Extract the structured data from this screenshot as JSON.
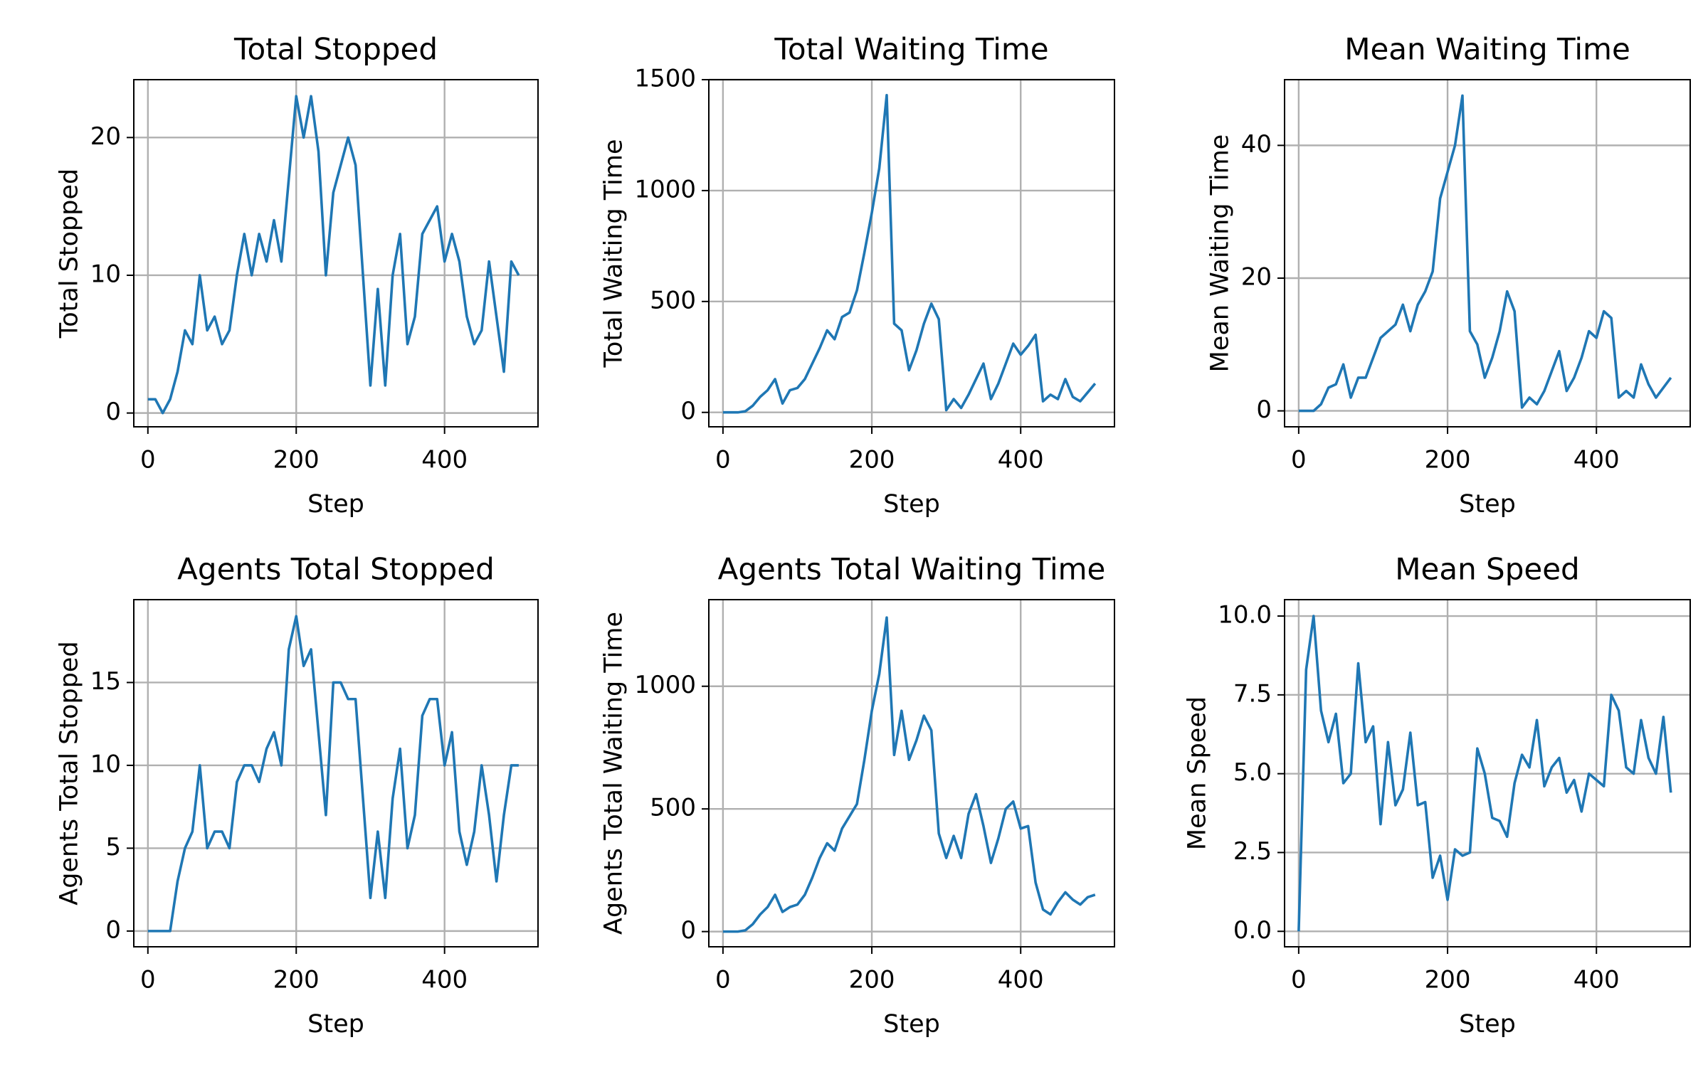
{
  "chart_data": [
    {
      "type": "line",
      "title": "Total Stopped",
      "xlabel": "Step",
      "ylabel": "Total Stopped",
      "x": [
        0,
        10,
        20,
        30,
        40,
        50,
        60,
        70,
        80,
        90,
        100,
        110,
        120,
        130,
        140,
        150,
        160,
        170,
        180,
        190,
        200,
        210,
        220,
        230,
        240,
        250,
        260,
        270,
        280,
        290,
        300,
        310,
        320,
        330,
        340,
        350,
        360,
        370,
        380,
        390,
        400,
        410,
        420,
        430,
        440,
        450,
        460,
        470,
        480,
        490,
        500
      ],
      "series": [
        {
          "color": "#1f77b4",
          "values": [
            1,
            1,
            0,
            1,
            3,
            6,
            5,
            10,
            6,
            7,
            5,
            6,
            10,
            13,
            10,
            13,
            11,
            14,
            11,
            17,
            23,
            20,
            23,
            19,
            10,
            16,
            18,
            20,
            18,
            10,
            2,
            9,
            2,
            10,
            13,
            5,
            7,
            13,
            14,
            15,
            11,
            13,
            11,
            7,
            5,
            6,
            11,
            7,
            3,
            11,
            10
          ]
        }
      ],
      "xlim": [
        -19,
        526
      ],
      "ylim": [
        -1,
        24.2
      ],
      "xticks": [
        0,
        200,
        400
      ],
      "yticks": [
        0,
        10,
        20
      ],
      "grid": true
    },
    {
      "type": "line",
      "title": "Total Waiting Time",
      "xlabel": "Step",
      "ylabel": "Total Waiting Time",
      "x": [
        0,
        10,
        20,
        30,
        40,
        50,
        60,
        70,
        80,
        90,
        100,
        110,
        120,
        130,
        140,
        150,
        160,
        170,
        180,
        190,
        200,
        210,
        220,
        230,
        240,
        250,
        260,
        270,
        280,
        290,
        300,
        310,
        320,
        330,
        340,
        350,
        360,
        370,
        380,
        390,
        400,
        410,
        420,
        430,
        440,
        450,
        460,
        470,
        480,
        490,
        500
      ],
      "series": [
        {
          "color": "#1f77b4",
          "values": [
            0,
            0,
            0,
            5,
            30,
            70,
            100,
            150,
            40,
            100,
            110,
            150,
            220,
            290,
            370,
            330,
            430,
            450,
            550,
            720,
            900,
            1100,
            1430,
            400,
            370,
            190,
            280,
            400,
            490,
            420,
            10,
            60,
            20,
            80,
            150,
            220,
            60,
            130,
            220,
            310,
            260,
            300,
            350,
            50,
            80,
            60,
            150,
            70,
            50,
            90,
            130
          ]
        }
      ],
      "xlim": [
        -19,
        526
      ],
      "ylim": [
        -65,
        1500
      ],
      "xticks": [
        0,
        200,
        400
      ],
      "yticks": [
        0,
        500,
        1000,
        1500
      ],
      "grid": true
    },
    {
      "type": "line",
      "title": "Mean Waiting Time",
      "xlabel": "Step",
      "ylabel": "Mean Waiting Time",
      "x": [
        0,
        10,
        20,
        30,
        40,
        50,
        60,
        70,
        80,
        90,
        100,
        110,
        120,
        130,
        140,
        150,
        160,
        170,
        180,
        190,
        200,
        210,
        220,
        230,
        240,
        250,
        260,
        270,
        280,
        290,
        300,
        310,
        320,
        330,
        340,
        350,
        360,
        370,
        380,
        390,
        400,
        410,
        420,
        430,
        440,
        450,
        460,
        470,
        480,
        490,
        500
      ],
      "series": [
        {
          "color": "#1f77b4",
          "values": [
            0,
            0,
            0,
            1,
            3.5,
            4,
            7,
            2,
            5,
            5,
            8,
            11,
            12,
            13,
            16,
            12,
            16,
            18,
            21,
            32,
            36,
            40,
            47.5,
            12,
            10,
            5,
            8,
            12,
            18,
            15,
            0.5,
            2,
            1,
            3,
            6,
            9,
            3,
            5,
            8,
            12,
            11,
            15,
            14,
            2,
            3,
            2,
            7,
            4,
            2,
            3.5,
            5
          ]
        }
      ],
      "xlim": [
        -19,
        526
      ],
      "ylim": [
        -2.4,
        49.9
      ],
      "xticks": [
        0,
        200,
        400
      ],
      "yticks": [
        0,
        20,
        40
      ],
      "grid": true
    },
    {
      "type": "line",
      "title": "Agents Total Stopped",
      "xlabel": "Step",
      "ylabel": "Agents Total Stopped",
      "x": [
        0,
        10,
        20,
        30,
        40,
        50,
        60,
        70,
        80,
        90,
        100,
        110,
        120,
        130,
        140,
        150,
        160,
        170,
        180,
        190,
        200,
        210,
        220,
        230,
        240,
        250,
        260,
        270,
        280,
        290,
        300,
        310,
        320,
        330,
        340,
        350,
        360,
        370,
        380,
        390,
        400,
        410,
        420,
        430,
        440,
        450,
        460,
        470,
        480,
        490,
        500
      ],
      "series": [
        {
          "color": "#1f77b4",
          "values": [
            0,
            0,
            0,
            0,
            3,
            5,
            6,
            10,
            5,
            6,
            6,
            5,
            9,
            10,
            10,
            9,
            11,
            12,
            10,
            17,
            19,
            16,
            17,
            12,
            7,
            15,
            15,
            14,
            14,
            8,
            2,
            6,
            2,
            8,
            11,
            5,
            7,
            13,
            14,
            14,
            10,
            12,
            6,
            4,
            6,
            10,
            7,
            3,
            7,
            10,
            10
          ]
        }
      ],
      "xlim": [
        -19,
        526
      ],
      "ylim": [
        -0.95,
        20
      ],
      "xticks": [
        0,
        200,
        400
      ],
      "yticks": [
        0,
        5,
        10,
        15
      ],
      "grid": true
    },
    {
      "type": "line",
      "title": "Agents Total Waiting Time",
      "xlabel": "Step",
      "ylabel": "Agents Total Waiting Time",
      "x": [
        0,
        10,
        20,
        30,
        40,
        50,
        60,
        70,
        80,
        90,
        100,
        110,
        120,
        130,
        140,
        150,
        160,
        170,
        180,
        190,
        200,
        210,
        220,
        230,
        240,
        250,
        260,
        270,
        280,
        290,
        300,
        310,
        320,
        330,
        340,
        350,
        360,
        370,
        380,
        390,
        400,
        410,
        420,
        430,
        440,
        450,
        460,
        470,
        480,
        490,
        500
      ],
      "series": [
        {
          "color": "#1f77b4",
          "values": [
            0,
            0,
            0,
            5,
            30,
            70,
            100,
            150,
            80,
            100,
            110,
            150,
            220,
            300,
            360,
            330,
            420,
            470,
            520,
            700,
            900,
            1050,
            1280,
            720,
            900,
            700,
            780,
            880,
            820,
            400,
            300,
            390,
            300,
            480,
            560,
            430,
            280,
            380,
            500,
            530,
            420,
            430,
            200,
            90,
            70,
            120,
            160,
            130,
            110,
            140,
            150
          ]
        }
      ],
      "xlim": [
        -19,
        526
      ],
      "ylim": [
        -62,
        1353
      ],
      "xticks": [
        0,
        200,
        400
      ],
      "yticks": [
        0,
        500,
        1000
      ],
      "grid": true
    },
    {
      "type": "line",
      "title": "Mean Speed",
      "xlabel": "Step",
      "ylabel": "Mean Speed",
      "x": [
        0,
        10,
        20,
        30,
        40,
        50,
        60,
        70,
        80,
        90,
        100,
        110,
        120,
        130,
        140,
        150,
        160,
        170,
        180,
        190,
        200,
        210,
        220,
        230,
        240,
        250,
        260,
        270,
        280,
        290,
        300,
        310,
        320,
        330,
        340,
        350,
        360,
        370,
        380,
        390,
        400,
        410,
        420,
        430,
        440,
        450,
        460,
        470,
        480,
        490,
        500
      ],
      "series": [
        {
          "color": "#1f77b4",
          "values": [
            0,
            8.3,
            10,
            7,
            6,
            6.9,
            4.7,
            5,
            8.5,
            6,
            6.5,
            3.4,
            6,
            4,
            4.5,
            6.3,
            4,
            4.1,
            1.7,
            2.4,
            1,
            2.6,
            2.4,
            2.5,
            5.8,
            5,
            3.6,
            3.5,
            3,
            4.7,
            5.6,
            5.2,
            6.7,
            4.6,
            5.2,
            5.5,
            4.4,
            4.8,
            3.8,
            5,
            4.8,
            4.6,
            7.5,
            7,
            5.2,
            5,
            6.7,
            5.5,
            5,
            6.8,
            4.4
          ]
        }
      ],
      "xlim": [
        -19,
        526
      ],
      "ylim": [
        -0.49,
        10.52
      ],
      "xticks": [
        0,
        200,
        400
      ],
      "yticks": [
        {
          "value": 0,
          "label": "0.0"
        },
        {
          "value": 2.5,
          "label": "2.5"
        },
        {
          "value": 5,
          "label": "5.0"
        },
        {
          "value": 7.5,
          "label": "7.5"
        },
        {
          "value": 10,
          "label": "10.0"
        }
      ],
      "grid": true
    }
  ]
}
